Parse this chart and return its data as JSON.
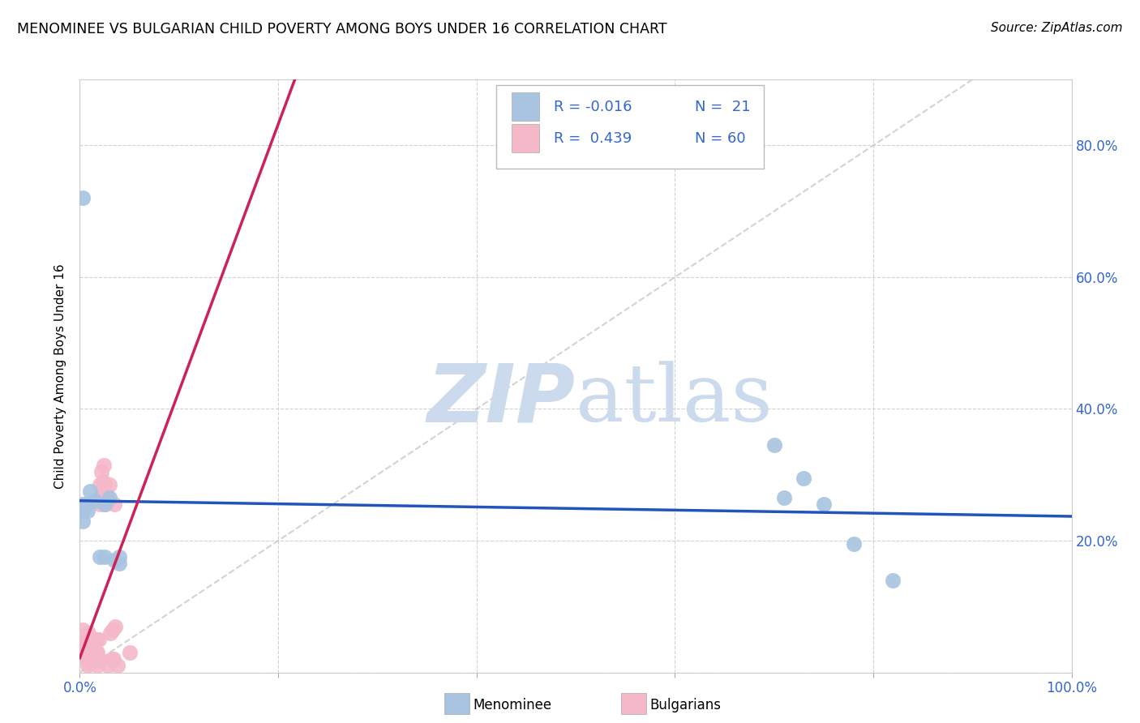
{
  "title": "MENOMINEE VS BULGARIAN CHILD POVERTY AMONG BOYS UNDER 16 CORRELATION CHART",
  "source": "Source: ZipAtlas.com",
  "ylabel": "Child Poverty Among Boys Under 16",
  "xlim": [
    0.0,
    1.0
  ],
  "ylim": [
    0.0,
    0.9
  ],
  "menominee_color": "#a8c4e0",
  "bulgarians_color": "#f4b8c8",
  "trend_menominee_color": "#2255bb",
  "trend_bulgarians_color": "#cc2255",
  "diagonal_color": "#c8c8c8",
  "watermark_color": "#ccdaee",
  "menominee_x": [
    0.003,
    0.003,
    0.003,
    0.006,
    0.008,
    0.01,
    0.015,
    0.02,
    0.025,
    0.025,
    0.03,
    0.035,
    0.04,
    0.04,
    0.7,
    0.71,
    0.73,
    0.75,
    0.78,
    0.82,
    0.003
  ],
  "menominee_y": [
    0.245,
    0.255,
    0.23,
    0.255,
    0.245,
    0.275,
    0.26,
    0.175,
    0.175,
    0.255,
    0.265,
    0.17,
    0.165,
    0.175,
    0.345,
    0.265,
    0.295,
    0.255,
    0.195,
    0.14,
    0.72
  ],
  "bulgarians_x": [
    0.003,
    0.004,
    0.005,
    0.005,
    0.006,
    0.006,
    0.007,
    0.007,
    0.008,
    0.008,
    0.008,
    0.009,
    0.009,
    0.009,
    0.01,
    0.01,
    0.01,
    0.011,
    0.011,
    0.012,
    0.012,
    0.013,
    0.013,
    0.013,
    0.014,
    0.014,
    0.015,
    0.015,
    0.015,
    0.016,
    0.016,
    0.017,
    0.017,
    0.018,
    0.018,
    0.019,
    0.019,
    0.02,
    0.02,
    0.021,
    0.022,
    0.022,
    0.023,
    0.023,
    0.024,
    0.025,
    0.025,
    0.026,
    0.027,
    0.028,
    0.029,
    0.03,
    0.031,
    0.032,
    0.033,
    0.034,
    0.035,
    0.036,
    0.038,
    0.05
  ],
  "bulgarians_y": [
    0.065,
    0.04,
    0.04,
    0.03,
    0.05,
    0.02,
    0.05,
    0.03,
    0.02,
    0.055,
    0.01,
    0.04,
    0.02,
    0.06,
    0.03,
    0.05,
    0.02,
    0.04,
    0.02,
    0.035,
    0.015,
    0.03,
    0.05,
    0.02,
    0.04,
    0.02,
    0.03,
    0.05,
    0.02,
    0.03,
    0.05,
    0.03,
    0.05,
    0.01,
    0.03,
    0.05,
    0.02,
    0.255,
    0.285,
    0.265,
    0.275,
    0.305,
    0.26,
    0.29,
    0.315,
    0.26,
    0.285,
    0.255,
    0.27,
    0.01,
    0.26,
    0.285,
    0.06,
    0.02,
    0.065,
    0.02,
    0.255,
    0.07,
    0.01,
    0.03
  ]
}
